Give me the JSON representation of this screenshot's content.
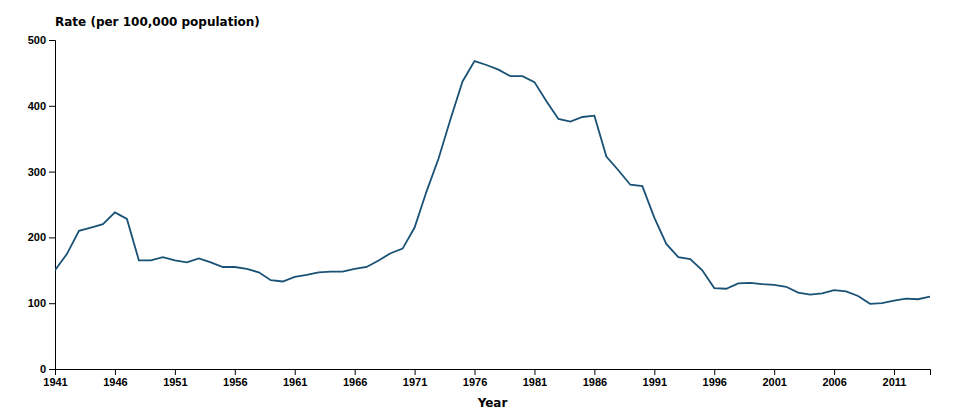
{
  "chart_data": {
    "type": "line",
    "x": [
      1941,
      1942,
      1943,
      1944,
      1945,
      1946,
      1947,
      1948,
      1949,
      1950,
      1951,
      1952,
      1953,
      1954,
      1955,
      1956,
      1957,
      1958,
      1959,
      1960,
      1961,
      1962,
      1963,
      1964,
      1965,
      1966,
      1967,
      1968,
      1969,
      1970,
      1971,
      1972,
      1973,
      1974,
      1975,
      1976,
      1977,
      1978,
      1979,
      1980,
      1981,
      1982,
      1983,
      1984,
      1985,
      1986,
      1987,
      1988,
      1989,
      1990,
      1991,
      1992,
      1993,
      1994,
      1995,
      1996,
      1997,
      1998,
      1999,
      2000,
      2001,
      2002,
      2003,
      2004,
      2005,
      2006,
      2007,
      2008,
      2009,
      2010,
      2011,
      2012,
      2013,
      2014
    ],
    "values": [
      150,
      175,
      210,
      215,
      220,
      238,
      228,
      165,
      165,
      170,
      165,
      162,
      168,
      162,
      155,
      155,
      152,
      147,
      135,
      133,
      140,
      143,
      147,
      148,
      148,
      152,
      155,
      165,
      176,
      183,
      215,
      270,
      320,
      380,
      437,
      468,
      462,
      455,
      445,
      445,
      436,
      407,
      380,
      376,
      383,
      385,
      323,
      302,
      280,
      278,
      230,
      190,
      170,
      167,
      150,
      123,
      122,
      130,
      131,
      129,
      128,
      125,
      116,
      113,
      115,
      120,
      118,
      111,
      99,
      100,
      104,
      107,
      106,
      110
    ],
    "color": "#1a5276",
    "xlabel": "Year",
    "ylabel": "Rate (per 100,000 population)",
    "xlim": [
      1941,
      2014
    ],
    "ylim": [
      0,
      500
    ],
    "xticks": [
      1941,
      1946,
      1951,
      1956,
      1961,
      1966,
      1971,
      1976,
      1981,
      1986,
      1991,
      1996,
      2001,
      2006,
      2011
    ],
    "yticks": [
      0,
      100,
      200,
      300,
      400,
      500
    ],
    "grid": false
  }
}
